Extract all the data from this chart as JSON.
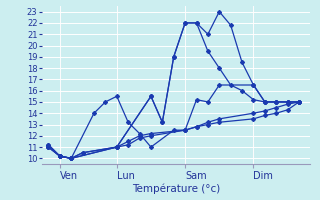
{
  "background_color": "#cceef0",
  "grid_color": "#ffffff",
  "line_color": "#1a3ab0",
  "x_tick_labels": [
    "Ven",
    "Lun",
    "Sam",
    "Dim"
  ],
  "x_tick_positions": [
    0.5,
    3.0,
    6.0,
    9.0
  ],
  "ylabel": "Température (°c)",
  "ylim": [
    9.5,
    23.5
  ],
  "xlim": [
    -0.3,
    11.5
  ],
  "yticks": [
    10,
    11,
    12,
    13,
    14,
    15,
    16,
    17,
    18,
    19,
    20,
    21,
    22,
    23
  ],
  "vlines": [
    0.5,
    3.0,
    6.0,
    9.0
  ],
  "series": {
    "s1_x": [
      0,
      0.5,
      1.0,
      1.5,
      3.0,
      3.5,
      4.0,
      4.5,
      6.0,
      6.5,
      7.0,
      7.5,
      9.0,
      9.5,
      10.0,
      10.5,
      11.0
    ],
    "s1_y": [
      11.0,
      10.2,
      10.0,
      10.5,
      11.0,
      11.5,
      12.0,
      12.2,
      12.5,
      12.8,
      13.0,
      13.2,
      13.5,
      13.8,
      14.0,
      14.3,
      15.0
    ],
    "s2_x": [
      0,
      0.5,
      1.0,
      1.5,
      3.0,
      3.5,
      4.0,
      4.5,
      6.0,
      6.5,
      7.0,
      7.5,
      9.0,
      9.5,
      10.0,
      10.5,
      11.0
    ],
    "s2_y": [
      11.2,
      10.2,
      10.0,
      10.5,
      11.0,
      11.2,
      11.8,
      12.0,
      12.5,
      12.8,
      13.2,
      13.5,
      14.0,
      14.2,
      14.5,
      14.8,
      15.0
    ],
    "s3_x": [
      0,
      0.5,
      1.0,
      2.0,
      2.5,
      3.0,
      3.5,
      4.0,
      4.5,
      5.5,
      6.0,
      6.5,
      7.0,
      7.5,
      9.0,
      9.5,
      10.0,
      10.5,
      11.0
    ],
    "s3_y": [
      11.0,
      10.2,
      10.0,
      14.0,
      15.0,
      15.5,
      13.2,
      12.2,
      11.0,
      12.5,
      12.5,
      15.2,
      15.0,
      16.5,
      16.5,
      15.0,
      15.0,
      15.0,
      15.0
    ],
    "s4_x": [
      0,
      0.5,
      1.0,
      3.0,
      4.5,
      5.0,
      5.5,
      6.0,
      6.5,
      7.0,
      7.5,
      8.0,
      8.5,
      9.0,
      9.5,
      10.0,
      10.5,
      11.0
    ],
    "s4_y": [
      11.2,
      10.2,
      10.0,
      11.0,
      15.5,
      13.2,
      19.0,
      22.0,
      22.0,
      19.5,
      18.0,
      16.5,
      16.0,
      15.2,
      15.0,
      15.0,
      15.0,
      15.0
    ],
    "s5_x": [
      0,
      0.5,
      1.0,
      3.0,
      4.5,
      5.0,
      5.5,
      6.0,
      6.5,
      7.0,
      7.5,
      8.0,
      8.5,
      9.0,
      9.5,
      10.0,
      10.5,
      11.0
    ],
    "s5_y": [
      11.0,
      10.2,
      10.0,
      11.0,
      15.5,
      13.2,
      19.0,
      22.0,
      22.0,
      21.0,
      23.0,
      21.8,
      18.5,
      16.5,
      15.0,
      15.0,
      15.0,
      15.0
    ]
  }
}
